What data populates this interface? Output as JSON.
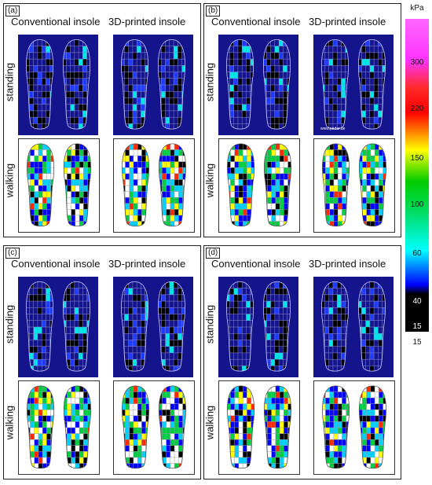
{
  "panels": [
    {
      "label": "(a)",
      "col_left": "Conventional insole",
      "col_right": "3D-printed insole",
      "row_top": "standing",
      "row_bottom": "walking"
    },
    {
      "label": "(b)",
      "col_left": "Conventional insole",
      "col_right": "3D-printed insole",
      "row_top": "standing",
      "row_bottom": "walking"
    },
    {
      "label": "(c)",
      "col_left": "Conventional insole",
      "col_right": "3D-printed insole",
      "row_top": "standing",
      "row_bottom": "walking"
    },
    {
      "label": "(d)",
      "col_left": "Conventional insole",
      "col_right": "3D-printed insole",
      "row_top": "standing",
      "row_bottom": "walking"
    }
  ],
  "legend": {
    "unit": "kPa",
    "ticks": [
      "300",
      "220",
      "150",
      "100",
      "60",
      "40",
      "15"
    ],
    "bottom_label": "15",
    "colors": [
      "#ff33ff",
      "#ff0000",
      "#ffff00",
      "#00cc00",
      "#00ffff",
      "#0000ff",
      "#000000"
    ]
  },
  "watermark": "www.pedar.de"
}
